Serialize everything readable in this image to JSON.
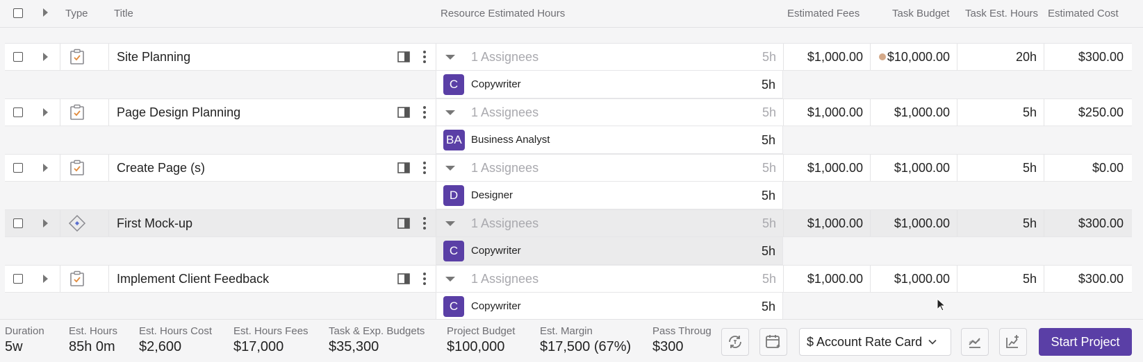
{
  "columns": {
    "type": "Type",
    "title": "Title",
    "resource_hours": "Resource Estimated Hours",
    "est_fees": "Estimated Fees",
    "task_budget": "Task Budget",
    "task_est_hours": "Task Est. Hours",
    "est_cost": "Estimated Cost"
  },
  "rows": [
    {
      "type_icon": "task-icon",
      "title": "Site Planning",
      "assignees": "1 Assignees",
      "hours": "5h",
      "fees": "$1,000.00",
      "budget": "$10,000.00",
      "task_hours": "20h",
      "cost": "$300.00",
      "budget_dot": true,
      "selected": false,
      "assignee": {
        "initials": "C",
        "role": "Copywriter",
        "hours": "5h"
      }
    },
    {
      "type_icon": "task-icon",
      "title": "Page Design Planning",
      "assignees": "1 Assignees",
      "hours": "5h",
      "fees": "$1,000.00",
      "budget": "$1,000.00",
      "task_hours": "5h",
      "cost": "$250.00",
      "budget_dot": false,
      "selected": false,
      "assignee": {
        "initials": "BA",
        "role": "Business Analyst",
        "hours": "5h"
      }
    },
    {
      "type_icon": "task-icon",
      "title": "Create Page (s)",
      "assignees": "1 Assignees",
      "hours": "5h",
      "fees": "$1,000.00",
      "budget": "$1,000.00",
      "task_hours": "5h",
      "cost": "$0.00",
      "budget_dot": false,
      "selected": false,
      "assignee": {
        "initials": "D",
        "role": "Designer",
        "hours": "5h"
      }
    },
    {
      "type_icon": "milestone-icon",
      "title": "First Mock-up",
      "assignees": "1 Assignees",
      "hours": "5h",
      "fees": "$1,000.00",
      "budget": "$1,000.00",
      "task_hours": "5h",
      "cost": "$300.00",
      "budget_dot": false,
      "selected": true,
      "assignee": {
        "initials": "C",
        "role": "Copywriter",
        "hours": "5h"
      }
    },
    {
      "type_icon": "task-icon",
      "title": "Implement Client Feedback",
      "assignees": "1 Assignees",
      "hours": "5h",
      "fees": "$1,000.00",
      "budget": "$1,000.00",
      "task_hours": "5h",
      "cost": "$300.00",
      "budget_dot": false,
      "selected": false,
      "assignee": {
        "initials": "C",
        "role": "Copywriter",
        "hours": "5h"
      }
    }
  ],
  "footer": {
    "stats": [
      {
        "label": "Duration",
        "value": "5w"
      },
      {
        "label": "Est. Hours",
        "value": "85h 0m"
      },
      {
        "label": "Est. Hours Cost",
        "value": "$2,600"
      },
      {
        "label": "Est. Hours Fees",
        "value": "$17,000"
      },
      {
        "label": "Task & Exp. Budgets",
        "value": "$35,300"
      },
      {
        "label": "Project Budget",
        "value": "$100,000"
      },
      {
        "label": "Est. Margin",
        "value": "$17,500 (67%)"
      },
      {
        "label": "Pass Throug",
        "value": "$300"
      }
    ],
    "rate_card": "$ Account Rate Card",
    "start_button": "Start Project"
  },
  "colors": {
    "accent": "#5a3fa6",
    "task_icon": "#e08a3c",
    "milestone_icon": "#5a6fcf",
    "budget_dot": "#d4a989"
  }
}
